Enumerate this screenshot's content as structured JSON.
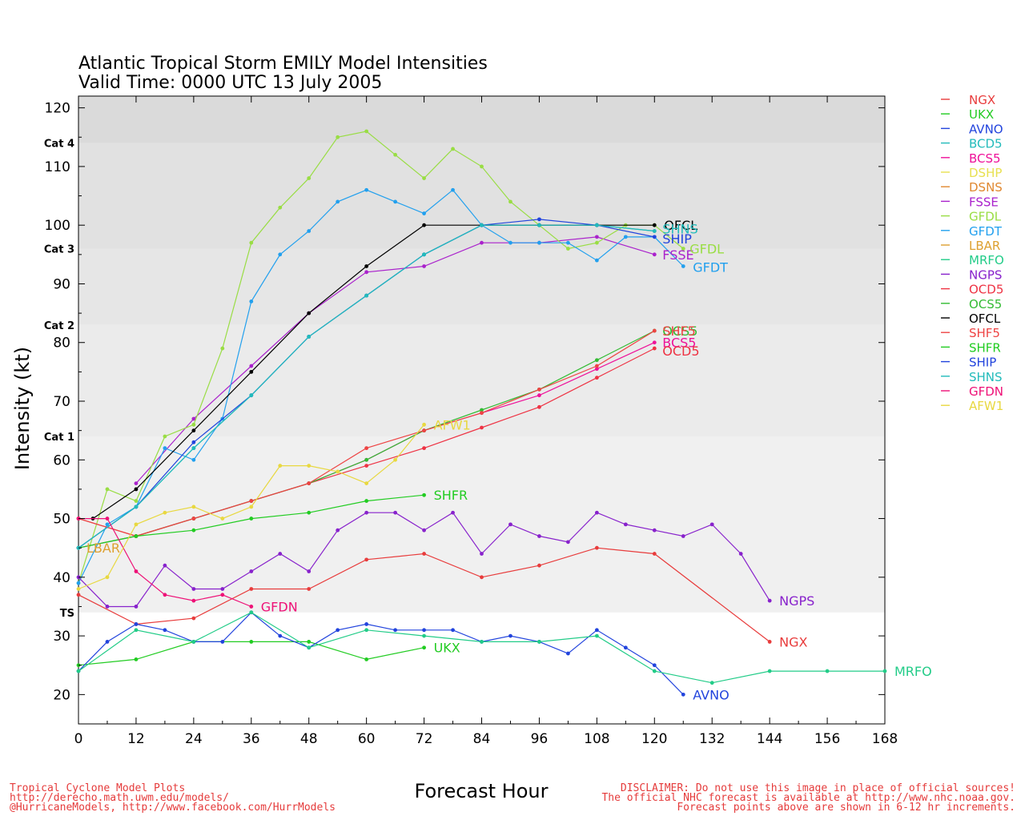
{
  "chart_data": {
    "type": "line",
    "title": "Atlantic Tropical Storm EMILY Model Intensities",
    "subtitle": "Valid Time: 0000 UTC 13 July 2005",
    "xlabel": "Forecast Hour",
    "ylabel": "Intensity (kt)",
    "xlim": [
      0,
      168
    ],
    "ylim": [
      15,
      122
    ],
    "x_ticks": [
      0,
      12,
      24,
      36,
      48,
      60,
      72,
      84,
      96,
      108,
      120,
      132,
      144,
      156,
      168
    ],
    "y_ticks": [
      20,
      30,
      40,
      50,
      60,
      70,
      80,
      90,
      100,
      110,
      120
    ],
    "categories_bands": [
      {
        "label": "TS",
        "from": 34,
        "to": 64,
        "color": "#f0f0f0"
      },
      {
        "label": "Cat 1",
        "from": 64,
        "to": 83,
        "color": "#ebebeb"
      },
      {
        "label": "Cat 2",
        "from": 83,
        "to": 96,
        "color": "#e6e6e6"
      },
      {
        "label": "Cat 3",
        "from": 96,
        "to": 114,
        "color": "#e1e1e1"
      },
      {
        "label": "Cat 4",
        "from": 114,
        "to": 122,
        "color": "#dadada"
      }
    ],
    "series": [
      {
        "name": "NGX",
        "color": "#e83c3c",
        "label": "NGX",
        "points": [
          [
            0,
            37
          ],
          [
            12,
            32
          ],
          [
            24,
            33
          ],
          [
            36,
            38
          ],
          [
            48,
            38
          ],
          [
            60,
            43
          ],
          [
            72,
            44
          ],
          [
            84,
            40
          ],
          [
            96,
            42
          ],
          [
            108,
            45
          ],
          [
            120,
            44
          ],
          [
            144,
            29
          ]
        ]
      },
      {
        "name": "UKX",
        "color": "#22cc22",
        "label": "UKX",
        "points": [
          [
            0,
            25
          ],
          [
            12,
            26
          ],
          [
            24,
            29
          ],
          [
            36,
            29
          ],
          [
            48,
            29
          ],
          [
            60,
            26
          ],
          [
            72,
            28
          ]
        ]
      },
      {
        "name": "AVNO",
        "color": "#2244dd",
        "label": "AVNO",
        "points": [
          [
            0,
            24
          ],
          [
            6,
            29
          ],
          [
            12,
            32
          ],
          [
            18,
            31
          ],
          [
            24,
            29
          ],
          [
            30,
            29
          ],
          [
            36,
            34
          ],
          [
            42,
            30
          ],
          [
            48,
            28
          ],
          [
            54,
            31
          ],
          [
            60,
            32
          ],
          [
            66,
            31
          ],
          [
            72,
            31
          ],
          [
            78,
            31
          ],
          [
            84,
            29
          ],
          [
            90,
            30
          ],
          [
            96,
            29
          ],
          [
            102,
            27
          ],
          [
            108,
            31
          ],
          [
            114,
            28
          ],
          [
            120,
            25
          ],
          [
            126,
            20
          ]
        ]
      },
      {
        "name": "BCD5",
        "color": "#22bbbb",
        "label": "",
        "points": [
          [
            0,
            45
          ],
          [
            12,
            52
          ],
          [
            24,
            62
          ],
          [
            36,
            71
          ],
          [
            48,
            81
          ],
          [
            60,
            88
          ],
          [
            72,
            95
          ],
          [
            84,
            100
          ],
          [
            96,
            100
          ],
          [
            108,
            100
          ],
          [
            120,
            99
          ]
        ]
      },
      {
        "name": "BCS5",
        "color": "#ee1199",
        "label": "BCS5",
        "points": [
          [
            0,
            45
          ],
          [
            12,
            47
          ],
          [
            24,
            50
          ],
          [
            36,
            53
          ],
          [
            48,
            56
          ],
          [
            60,
            60
          ],
          [
            72,
            65
          ],
          [
            84,
            68
          ],
          [
            96,
            71
          ],
          [
            108,
            75.5
          ],
          [
            120,
            80
          ]
        ]
      },
      {
        "name": "DSHP",
        "color": "#e8e050",
        "label": "",
        "points": []
      },
      {
        "name": "DSNS",
        "color": "#e08830",
        "label": "",
        "points": []
      },
      {
        "name": "FSSE",
        "color": "#aa22cc",
        "label": "FSSE",
        "points": [
          [
            12,
            56
          ],
          [
            24,
            67
          ],
          [
            36,
            76
          ],
          [
            48,
            85
          ],
          [
            60,
            92
          ],
          [
            72,
            93
          ],
          [
            84,
            97
          ],
          [
            96,
            97
          ],
          [
            108,
            98
          ],
          [
            120,
            95
          ]
        ]
      },
      {
        "name": "GFDL",
        "color": "#99dd44",
        "label": "GFDL",
        "points": [
          [
            0,
            39
          ],
          [
            6,
            55
          ],
          [
            12,
            53
          ],
          [
            18,
            64
          ],
          [
            24,
            66
          ],
          [
            30,
            79
          ],
          [
            36,
            97
          ],
          [
            42,
            103
          ],
          [
            48,
            108
          ],
          [
            54,
            115
          ],
          [
            60,
            116
          ],
          [
            66,
            112
          ],
          [
            72,
            108
          ],
          [
            78,
            113
          ],
          [
            84,
            110
          ],
          [
            90,
            104
          ],
          [
            96,
            100
          ],
          [
            102,
            96
          ],
          [
            108,
            97
          ],
          [
            114,
            100
          ],
          [
            120,
            100
          ],
          [
            126,
            96
          ]
        ]
      },
      {
        "name": "GFDT",
        "color": "#22a0ee",
        "label": "GFDT",
        "points": [
          [
            0,
            39
          ],
          [
            6,
            49
          ],
          [
            12,
            52
          ],
          [
            18,
            62
          ],
          [
            24,
            60
          ],
          [
            30,
            67
          ],
          [
            36,
            87
          ],
          [
            42,
            95
          ],
          [
            48,
            99
          ],
          [
            54,
            104
          ],
          [
            60,
            106
          ],
          [
            66,
            104
          ],
          [
            72,
            102
          ],
          [
            78,
            106
          ],
          [
            84,
            100
          ],
          [
            90,
            97
          ],
          [
            96,
            97
          ],
          [
            102,
            97
          ],
          [
            108,
            94
          ],
          [
            114,
            98
          ],
          [
            120,
            98
          ],
          [
            126,
            93
          ]
        ]
      },
      {
        "name": "LBAR",
        "color": "#dda030",
        "label": "LBAR",
        "points": [
          [
            0,
            45
          ]
        ]
      },
      {
        "name": "MRFO",
        "color": "#22cc88",
        "label": "MRFO",
        "points": [
          [
            0,
            24
          ],
          [
            12,
            31
          ],
          [
            24,
            29
          ],
          [
            36,
            34
          ],
          [
            48,
            28
          ],
          [
            60,
            31
          ],
          [
            72,
            30
          ],
          [
            84,
            29
          ],
          [
            96,
            29
          ],
          [
            108,
            30
          ],
          [
            120,
            24
          ],
          [
            132,
            22
          ],
          [
            144,
            24
          ],
          [
            156,
            24
          ],
          [
            168,
            24
          ]
        ]
      },
      {
        "name": "NGPS",
        "color": "#8822cc",
        "label": "NGPS",
        "points": [
          [
            0,
            40
          ],
          [
            6,
            35
          ],
          [
            12,
            35
          ],
          [
            18,
            42
          ],
          [
            24,
            38
          ],
          [
            30,
            38
          ],
          [
            36,
            41
          ],
          [
            42,
            44
          ],
          [
            48,
            41
          ],
          [
            54,
            48
          ],
          [
            60,
            51
          ],
          [
            66,
            51
          ],
          [
            72,
            48
          ],
          [
            78,
            51
          ],
          [
            84,
            44
          ],
          [
            90,
            49
          ],
          [
            96,
            47
          ],
          [
            102,
            46
          ],
          [
            108,
            51
          ],
          [
            114,
            49
          ],
          [
            120,
            48
          ],
          [
            126,
            47
          ],
          [
            132,
            49
          ],
          [
            138,
            44
          ],
          [
            144,
            36
          ]
        ]
      },
      {
        "name": "OCD5",
        "color": "#ee3344",
        "label": "OCD5",
        "points": [
          [
            0,
            50
          ],
          [
            12,
            47
          ],
          [
            24,
            50
          ],
          [
            36,
            53
          ],
          [
            48,
            56
          ],
          [
            60,
            59
          ],
          [
            72,
            62
          ],
          [
            84,
            65.5
          ],
          [
            96,
            69
          ],
          [
            108,
            74
          ],
          [
            120,
            79
          ]
        ]
      },
      {
        "name": "OCS5",
        "color": "#33bb33",
        "label": "OCS5",
        "points": [
          [
            0,
            45
          ],
          [
            12,
            47
          ],
          [
            24,
            50
          ],
          [
            36,
            53
          ],
          [
            48,
            56
          ],
          [
            60,
            60
          ],
          [
            72,
            65
          ],
          [
            84,
            68.5
          ],
          [
            96,
            72
          ],
          [
            108,
            77
          ],
          [
            120,
            82
          ]
        ]
      },
      {
        "name": "OFCL",
        "color": "#000000",
        "label": "OFCL",
        "points": [
          [
            3,
            50
          ],
          [
            12,
            55
          ],
          [
            24,
            65
          ],
          [
            36,
            75
          ],
          [
            48,
            85
          ],
          [
            60,
            93
          ],
          [
            72,
            100
          ],
          [
            84,
            100
          ],
          [
            96,
            100
          ],
          [
            108,
            100
          ],
          [
            120,
            100
          ]
        ]
      },
      {
        "name": "SHF5",
        "color": "#ee4444",
        "label": "SHF5",
        "points": [
          [
            0,
            50
          ],
          [
            12,
            47
          ],
          [
            24,
            50
          ],
          [
            36,
            53
          ],
          [
            48,
            56
          ],
          [
            60,
            62
          ],
          [
            72,
            65
          ],
          [
            84,
            68
          ],
          [
            96,
            72
          ],
          [
            108,
            76
          ],
          [
            120,
            82
          ]
        ]
      },
      {
        "name": "SHFR",
        "color": "#22cc22",
        "label": "SHFR",
        "points": [
          [
            0,
            45
          ],
          [
            12,
            47
          ],
          [
            24,
            48
          ],
          [
            36,
            50
          ],
          [
            48,
            51
          ],
          [
            60,
            53
          ],
          [
            72,
            54
          ]
        ]
      },
      {
        "name": "SHIP",
        "color": "#2244dd",
        "label": "SHIP",
        "points": [
          [
            0,
            45
          ],
          [
            12,
            52
          ],
          [
            24,
            63
          ],
          [
            36,
            71
          ],
          [
            48,
            81
          ],
          [
            60,
            88
          ],
          [
            72,
            95
          ],
          [
            84,
            100
          ],
          [
            96,
            101
          ],
          [
            108,
            100
          ],
          [
            120,
            98
          ]
        ]
      },
      {
        "name": "SHNS",
        "color": "#22bbbb",
        "label": "SHNS",
        "points": [
          [
            0,
            45
          ],
          [
            12,
            52
          ],
          [
            24,
            62
          ],
          [
            36,
            71
          ],
          [
            48,
            81
          ],
          [
            60,
            88
          ],
          [
            72,
            95
          ],
          [
            84,
            100
          ],
          [
            96,
            100
          ],
          [
            108,
            100
          ],
          [
            120,
            99
          ]
        ]
      },
      {
        "name": "GFDN",
        "color": "#ee1177",
        "label": "GFDN",
        "points": [
          [
            0,
            50
          ],
          [
            6,
            50
          ],
          [
            12,
            41
          ],
          [
            18,
            37
          ],
          [
            24,
            36
          ],
          [
            30,
            37
          ],
          [
            36,
            35
          ]
        ]
      },
      {
        "name": "AFW1",
        "color": "#e8d840",
        "label": "AFW1",
        "points": [
          [
            0,
            38
          ],
          [
            6,
            40
          ],
          [
            12,
            49
          ],
          [
            18,
            51
          ],
          [
            24,
            52
          ],
          [
            30,
            50
          ],
          [
            36,
            52
          ],
          [
            42,
            59
          ],
          [
            48,
            59
          ],
          [
            54,
            58
          ],
          [
            60,
            56
          ],
          [
            66,
            60
          ],
          [
            72,
            66
          ]
        ]
      }
    ]
  },
  "footer": {
    "left_lines": [
      "Tropical Cyclone Model Plots",
      "http://derecho.math.uwm.edu/models/",
      "@HurricaneModels, http://www.facebook.com/HurrModels"
    ],
    "right_lines": [
      "DISCLAIMER: Do not use this image in place of official sources!",
      "The official NHC forecast is available at http://www.nhc.noaa.gov.",
      "Forecast points above are shown in 6-12 hr increments."
    ]
  }
}
